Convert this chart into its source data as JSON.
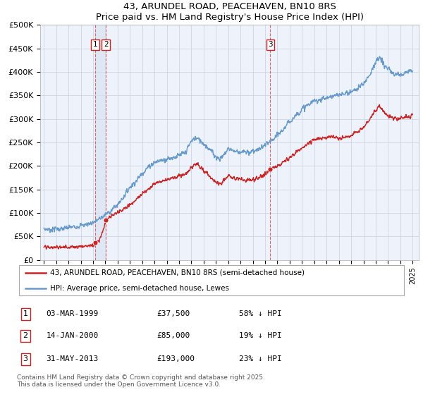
{
  "title": "43, ARUNDEL ROAD, PEACEHAVEN, BN10 8RS",
  "subtitle": "Price paid vs. HM Land Registry's House Price Index (HPI)",
  "ylim": [
    0,
    500000
  ],
  "yticks": [
    0,
    50000,
    100000,
    150000,
    200000,
    250000,
    300000,
    350000,
    400000,
    450000,
    500000
  ],
  "ytick_labels": [
    "£0",
    "£50K",
    "£100K",
    "£150K",
    "£200K",
    "£250K",
    "£300K",
    "£350K",
    "£400K",
    "£450K",
    "£500K"
  ],
  "xlim_start": 1994.7,
  "xlim_end": 2025.5,
  "red_color": "#cc2222",
  "blue_color": "#6699cc",
  "shade_color": "#e8ecf8",
  "background_color": "#eef2fb",
  "sale1_date": 1999.17,
  "sale1_price": 37500,
  "sale2_date": 2000.04,
  "sale2_price": 85000,
  "sale3_date": 2013.41,
  "sale3_price": 193000,
  "legend_red": "43, ARUNDEL ROAD, PEACEHAVEN, BN10 8RS (semi-detached house)",
  "legend_blue": "HPI: Average price, semi-detached house, Lewes",
  "table_data": [
    [
      "1",
      "03-MAR-1999",
      "£37,500",
      "58% ↓ HPI"
    ],
    [
      "2",
      "14-JAN-2000",
      "£85,000",
      "19% ↓ HPI"
    ],
    [
      "3",
      "31-MAY-2013",
      "£193,000",
      "23% ↓ HPI"
    ]
  ],
  "footer": "Contains HM Land Registry data © Crown copyright and database right 2025.\nThis data is licensed under the Open Government Licence v3.0."
}
